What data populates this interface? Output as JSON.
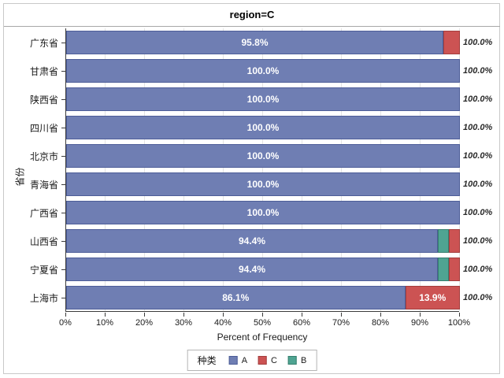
{
  "title": "region=C",
  "axes": {
    "x_title": "Percent of Frequency",
    "y_title": "省份",
    "x_ticks": [
      "0%",
      "10%",
      "20%",
      "30%",
      "40%",
      "50%",
      "60%",
      "70%",
      "80%",
      "90%",
      "100%"
    ]
  },
  "legend": {
    "title": "种类",
    "items": [
      "A",
      "C",
      "B"
    ]
  },
  "chart_data": {
    "type": "bar",
    "orientation": "horizontal",
    "stacked": true,
    "title": "region=C",
    "xlabel": "Percent of Frequency",
    "ylabel": "省份",
    "x_range": [
      0,
      100
    ],
    "x_tick_step": 10,
    "grid": true,
    "legend_position": "bottom",
    "series": [
      {
        "name": "A",
        "fill": "#6F7EB3",
        "border": "#4D5D98"
      },
      {
        "name": "B",
        "fill": "#4FA492",
        "border": "#367F6E"
      },
      {
        "name": "C",
        "fill": "#CC5353",
        "border": "#A33D3D"
      }
    ],
    "rows": [
      {
        "category": "广东省",
        "segments": [
          {
            "series": "A",
            "value": 95.8,
            "label": "95.8%"
          },
          {
            "series": "C",
            "value": 4.2,
            "label": ""
          }
        ],
        "total_label": "100.0%"
      },
      {
        "category": "甘肃省",
        "segments": [
          {
            "series": "A",
            "value": 100.0,
            "label": "100.0%"
          }
        ],
        "total_label": "100.0%"
      },
      {
        "category": "陕西省",
        "segments": [
          {
            "series": "A",
            "value": 100.0,
            "label": "100.0%"
          }
        ],
        "total_label": "100.0%"
      },
      {
        "category": "四川省",
        "segments": [
          {
            "series": "A",
            "value": 100.0,
            "label": "100.0%"
          }
        ],
        "total_label": "100.0%"
      },
      {
        "category": "北京市",
        "segments": [
          {
            "series": "A",
            "value": 100.0,
            "label": "100.0%"
          }
        ],
        "total_label": "100.0%"
      },
      {
        "category": "青海省",
        "segments": [
          {
            "series": "A",
            "value": 100.0,
            "label": "100.0%"
          }
        ],
        "total_label": "100.0%"
      },
      {
        "category": "广西省",
        "segments": [
          {
            "series": "A",
            "value": 100.0,
            "label": "100.0%"
          }
        ],
        "total_label": "100.0%"
      },
      {
        "category": "山西省",
        "segments": [
          {
            "series": "A",
            "value": 94.4,
            "label": "94.4%"
          },
          {
            "series": "B",
            "value": 2.8,
            "label": ""
          },
          {
            "series": "C",
            "value": 2.8,
            "label": ""
          }
        ],
        "total_label": "100.0%"
      },
      {
        "category": "宁夏省",
        "segments": [
          {
            "series": "A",
            "value": 94.4,
            "label": "94.4%"
          },
          {
            "series": "B",
            "value": 2.8,
            "label": ""
          },
          {
            "series": "C",
            "value": 2.8,
            "label": ""
          }
        ],
        "total_label": "100.0%"
      },
      {
        "category": "上海市",
        "segments": [
          {
            "series": "A",
            "value": 86.1,
            "label": "86.1%"
          },
          {
            "series": "C",
            "value": 13.9,
            "label": "13.9%"
          }
        ],
        "total_label": "100.0%"
      }
    ]
  }
}
